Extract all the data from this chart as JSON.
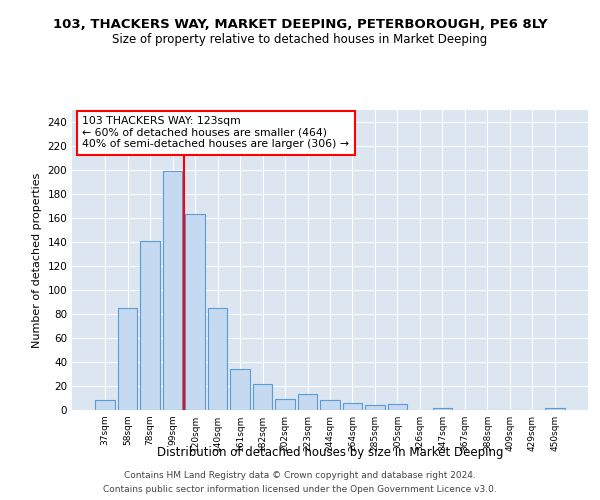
{
  "title": "103, THACKERS WAY, MARKET DEEPING, PETERBOROUGH, PE6 8LY",
  "subtitle": "Size of property relative to detached houses in Market Deeping",
  "xlabel": "Distribution of detached houses by size in Market Deeping",
  "ylabel": "Number of detached properties",
  "bar_color": "#c5d9f0",
  "bar_edge_color": "#5b9bd5",
  "background_color": "#dce6f1",
  "categories": [
    "37sqm",
    "58sqm",
    "78sqm",
    "99sqm",
    "120sqm",
    "140sqm",
    "161sqm",
    "182sqm",
    "202sqm",
    "223sqm",
    "244sqm",
    "264sqm",
    "285sqm",
    "305sqm",
    "326sqm",
    "347sqm",
    "367sqm",
    "388sqm",
    "409sqm",
    "429sqm",
    "450sqm"
  ],
  "values": [
    8,
    85,
    141,
    199,
    163,
    85,
    34,
    22,
    9,
    13,
    8,
    6,
    4,
    5,
    0,
    2,
    0,
    0,
    0,
    0,
    2
  ],
  "vline_color": "red",
  "vline_index": 4.0,
  "annotation_text": "103 THACKERS WAY: 123sqm\n← 60% of detached houses are smaller (464)\n40% of semi-detached houses are larger (306) →",
  "annotation_box_color": "white",
  "annotation_box_edge_color": "red",
  "ylim": [
    0,
    250
  ],
  "yticks": [
    0,
    20,
    40,
    60,
    80,
    100,
    120,
    140,
    160,
    180,
    200,
    220,
    240
  ],
  "footer1": "Contains HM Land Registry data © Crown copyright and database right 2024.",
  "footer2": "Contains public sector information licensed under the Open Government Licence v3.0."
}
